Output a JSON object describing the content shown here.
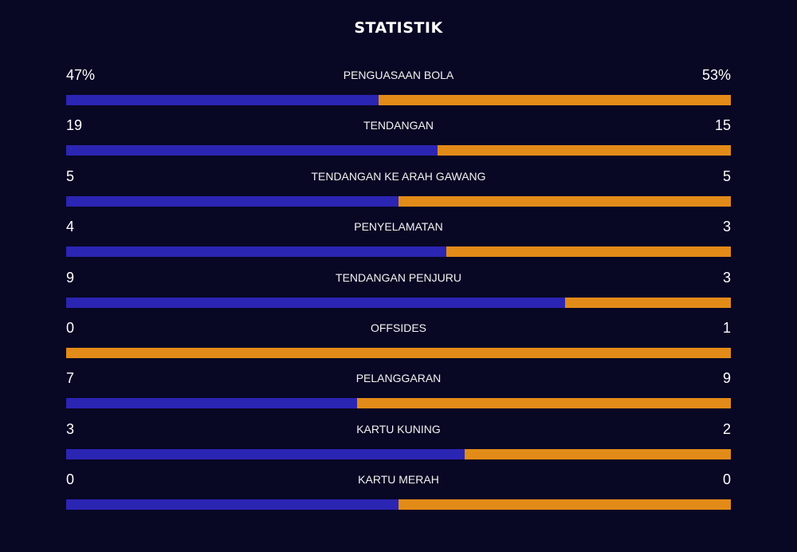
{
  "title": "STATISTIK",
  "colors": {
    "background": "#080724",
    "home_bar": "#2b25b3",
    "away_bar": "#e28b18"
  },
  "stats": [
    {
      "label": "PENGUASAAN BOLA",
      "home": "47%",
      "away": "53%",
      "home_share": 0.47
    },
    {
      "label": "TENDANGAN",
      "home": "19",
      "away": "15",
      "home_share": 0.5588
    },
    {
      "label": "TENDANGAN KE ARAH GAWANG",
      "home": "5",
      "away": "5",
      "home_share": 0.5
    },
    {
      "label": "PENYELAMATAN",
      "home": "4",
      "away": "3",
      "home_share": 0.5714
    },
    {
      "label": "TENDANGAN PENJURU",
      "home": "9",
      "away": "3",
      "home_share": 0.75
    },
    {
      "label": "OFFSIDES",
      "home": "0",
      "away": "1",
      "home_share": 0
    },
    {
      "label": "PELANGGARAN",
      "home": "7",
      "away": "9",
      "home_share": 0.4375
    },
    {
      "label": "KARTU KUNING",
      "home": "3",
      "away": "2",
      "home_share": 0.6
    },
    {
      "label": "KARTU MERAH",
      "home": "0",
      "away": "0",
      "home_share": 0.5
    }
  ]
}
